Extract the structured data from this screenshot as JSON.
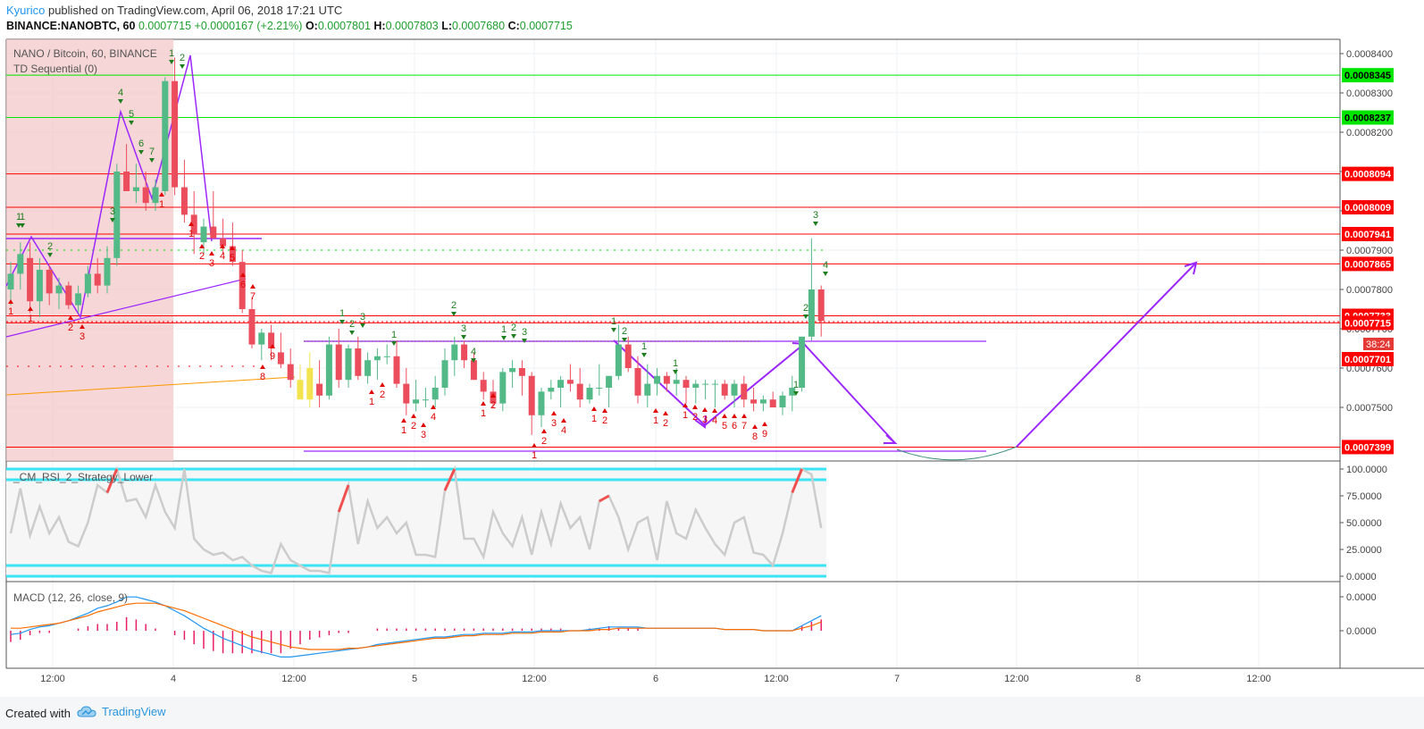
{
  "header": {
    "author": "Kyurico",
    "published_text": " published on TradingView.com, April 06, 2018 17:21 UTC",
    "symbol": "BINANCE:NANOBTC, 60",
    "last": "0.0007715",
    "change": "+0.0000167 (+2.21%)",
    "o_label": "O:",
    "o_value": "0.0007801",
    "h_label": "H:",
    "h_value": "0.0007803",
    "l_label": "L:",
    "l_value": "0.0007680",
    "c_label": "C:",
    "c_value": "0.0007715"
  },
  "legend": {
    "pair": "NANO / Bitcoin, 60, BINANCE",
    "indicator": "TD Sequential (0)",
    "rsi": "_CM_RSI_2_Strategy_Lower",
    "macd": "MACD (12, 26, close, 9)"
  },
  "footer": {
    "created_with": "Created with",
    "brand": "TradingView"
  },
  "colors": {
    "up": "#53b987",
    "down": "#eb4d5c",
    "yellow": "#f3e34f",
    "resistance_red": "#ff0000",
    "support_green": "#00e600",
    "purple": "#9c27ff",
    "cyan": "#3ae4f4",
    "rsi_line": "#cccccc",
    "macd": "#2196f3",
    "signal": "#ff6d00",
    "hist": "#e91e63"
  },
  "chart_data": {
    "type": "candlestick",
    "ylim": [
      0.00073,
      0.00084
    ],
    "price_ticks": [
      "0.0008400",
      "0.0008300",
      "0.0008200",
      "0.0008100",
      "0.0008000",
      "0.0007900",
      "0.0007800",
      "0.0007700",
      "0.0007600",
      "0.0007500"
    ],
    "x_ticks": [
      "12:00",
      "4",
      "12:00",
      "5",
      "12:00",
      "6",
      "12:00",
      "7",
      "12:00",
      "8",
      "12:00"
    ],
    "levels": [
      {
        "price": 0.00083451,
        "label": "0.0008345",
        "color": "#00e600"
      },
      {
        "price": 0.00082374,
        "label": "0.0008237",
        "color": "#00e600"
      },
      {
        "price": 0.0008094,
        "label": "0.0008094",
        "color": "#ff0000"
      },
      {
        "price": 0.0008009,
        "label": "0.0008009",
        "color": "#ff0000"
      },
      {
        "price": 0.0007941,
        "label": "0.0007941",
        "color": "#ff0000"
      },
      {
        "price": 0.0007865,
        "label": "0.0007865",
        "color": "#ff0000"
      },
      {
        "price": 0.0007733,
        "label": "0.0007733",
        "color": "#ff0000"
      },
      {
        "price": 0.0007715,
        "label": "0.0007715",
        "color": "#ff0000"
      },
      {
        "price": 0.0007399,
        "label": "0.0007399",
        "color": "#ff0000"
      }
    ],
    "current": {
      "label": "0.0007715",
      "countdown": "38:24",
      "level2": "0.0007701"
    },
    "candles": [
      [
        0.00078,
        0.000787,
        0.000776,
        0.000784
      ],
      [
        0.000784,
        0.000792,
        0.00078,
        0.000789
      ],
      [
        0.000788,
        0.000792,
        0.000774,
        0.000777
      ],
      [
        0.000777,
        0.000788,
        0.000773,
        0.000785
      ],
      [
        0.000785,
        0.000786,
        0.000776,
        0.000779
      ],
      [
        0.000779,
        0.000783,
        0.000775,
        0.000781
      ],
      [
        0.000781,
        0.000782,
        0.000775,
        0.000776
      ],
      [
        0.000776,
        0.000781,
        0.000774,
        0.000779
      ],
      [
        0.000779,
        0.000786,
        0.000778,
        0.000784
      ],
      [
        0.000784,
        0.000788,
        0.000779,
        0.000781
      ],
      [
        0.000781,
        0.000791,
        0.000779,
        0.000788
      ],
      [
        0.000788,
        0.000812,
        0.000786,
        0.00081
      ],
      [
        0.00081,
        0.000817,
        0.000806,
        0.000805
      ],
      [
        0.000805,
        0.000812,
        0.000802,
        0.000806
      ],
      [
        0.000806,
        0.00081,
        0.0008,
        0.000802
      ],
      [
        0.000802,
        0.000808,
        0.0008,
        0.000806
      ],
      [
        0.000805,
        0.000834,
        0.000804,
        0.000833
      ],
      [
        0.000833,
        0.000839,
        0.000804,
        0.000806
      ],
      [
        0.000806,
        0.000813,
        0.000797,
        0.000799
      ],
      [
        0.000799,
        0.000805,
        0.000789,
        0.000794
      ],
      [
        0.000792,
        0.000798,
        0.000789,
        0.000796
      ],
      [
        0.000796,
        0.000805,
        0.000793,
        0.000793
      ],
      [
        0.000793,
        0.000798,
        0.000789,
        0.000791
      ],
      [
        0.000791,
        0.000797,
        0.000786,
        0.000787
      ],
      [
        0.000787,
        0.00079,
        0.000774,
        0.000775
      ],
      [
        0.000775,
        0.000778,
        0.000765,
        0.000766
      ],
      [
        0.000766,
        0.00077,
        0.000762,
        0.000769
      ],
      [
        0.000769,
        0.000771,
        0.000762,
        0.000765
      ],
      [
        0.000764,
        0.000769,
        0.00076,
        0.000761
      ],
      [
        0.000761,
        0.000765,
        0.000755,
        0.000757
      ],
      [
        0.000757,
        0.000761,
        0.000752,
        0.000752
      ],
      [
        0.000752,
        0.000764,
        0.00075,
        0.00076
      ],
      [
        0.000756,
        0.000762,
        0.00075,
        0.000753
      ],
      [
        0.000753,
        0.000768,
        0.000752,
        0.000766
      ],
      [
        0.000766,
        0.00077,
        0.000755,
        0.000757
      ],
      [
        0.000757,
        0.000766,
        0.000755,
        0.000765
      ],
      [
        0.000765,
        0.000768,
        0.000757,
        0.000758
      ],
      [
        0.000758,
        0.000764,
        0.000756,
        0.000762
      ],
      [
        0.000762,
        0.000765,
        0.000757,
        0.000763
      ],
      [
        0.000763,
        0.000766,
        0.000761,
        0.000763
      ],
      [
        0.000763,
        0.000767,
        0.000755,
        0.000756
      ],
      [
        0.000756,
        0.00076,
        0.000748,
        0.000751
      ],
      [
        0.000751,
        0.000757,
        0.000749,
        0.000752
      ],
      [
        0.000752,
        0.000755,
        0.00075,
        0.000752
      ],
      [
        0.000752,
        0.000758,
        0.00075,
        0.000755
      ],
      [
        0.000755,
        0.000765,
        0.000753,
        0.000762
      ],
      [
        0.000762,
        0.000768,
        0.000758,
        0.000766
      ],
      [
        0.000766,
        0.000767,
        0.00076,
        0.000762
      ],
      [
        0.000762,
        0.000764,
        0.000757,
        0.000757
      ],
      [
        0.000757,
        0.000759,
        0.000752,
        0.000754
      ],
      [
        0.000754,
        0.000757,
        0.00075,
        0.000751
      ],
      [
        0.000751,
        0.00076,
        0.000749,
        0.000759
      ],
      [
        0.000759,
        0.000762,
        0.000755,
        0.00076
      ],
      [
        0.00076,
        0.000762,
        0.000753,
        0.000758
      ],
      [
        0.000758,
        0.000759,
        0.000743,
        0.000748
      ],
      [
        0.000748,
        0.000755,
        0.000745,
        0.000754
      ],
      [
        0.000754,
        0.000757,
        0.000752,
        0.000755
      ],
      [
        0.000755,
        0.000758,
        0.00075,
        0.000757
      ],
      [
        0.000757,
        0.000761,
        0.000754,
        0.000756
      ],
      [
        0.000756,
        0.00076,
        0.00075,
        0.000752
      ],
      [
        0.000752,
        0.000756,
        0.000751,
        0.000755
      ],
      [
        0.000755,
        0.000761,
        0.000753,
        0.000755
      ],
      [
        0.000755,
        0.000758,
        0.00075,
        0.000758
      ],
      [
        0.000758,
        0.000771,
        0.000757,
        0.000766
      ],
      [
        0.000766,
        0.000768,
        0.000759,
        0.00076
      ],
      [
        0.00076,
        0.000763,
        0.000751,
        0.000753
      ],
      [
        0.000753,
        0.000761,
        0.00075,
        0.000756
      ],
      [
        0.000756,
        0.00076,
        0.000753,
        0.000758
      ],
      [
        0.000758,
        0.000759,
        0.000754,
        0.000756
      ],
      [
        0.000756,
        0.00076,
        0.000753,
        0.000757
      ],
      [
        0.000757,
        0.000758,
        0.000751,
        0.000755
      ],
      [
        0.000755,
        0.000757,
        0.000751,
        0.000756
      ],
      [
        0.000756,
        0.000757,
        0.000752,
        0.000756
      ],
      [
        0.000756,
        0.000757,
        0.00075,
        0.000756
      ],
      [
        0.000756,
        0.000757,
        0.000752,
        0.000753
      ],
      [
        0.000753,
        0.000757,
        0.00075,
        0.000756
      ],
      [
        0.000756,
        0.000758,
        0.00075,
        0.000752
      ],
      [
        0.000752,
        0.000755,
        0.000749,
        0.000751
      ],
      [
        0.000751,
        0.000753,
        0.000749,
        0.000752
      ],
      [
        0.000752,
        0.000754,
        0.00075,
        0.00075
      ],
      [
        0.00075,
        0.000754,
        0.000748,
        0.000753
      ],
      [
        0.000753,
        0.000758,
        0.000749,
        0.000755
      ],
      [
        0.000755,
        0.000767,
        0.000754,
        0.000768
      ],
      [
        0.000768,
        0.000793,
        0.000767,
        0.00078
      ],
      [
        0.00078,
        0.000781,
        0.000768,
        0.000772
      ]
    ],
    "rsi_ticks": [
      "100.0000",
      "75.0000",
      "50.0000",
      "25.0000",
      "0.0000"
    ],
    "rsi": [
      40,
      82,
      38,
      65,
      40,
      55,
      32,
      28,
      50,
      85,
      78,
      100,
      70,
      72,
      55,
      85,
      60,
      45,
      100,
      35,
      25,
      20,
      22,
      15,
      18,
      10,
      5,
      3,
      30,
      15,
      10,
      5,
      5,
      3,
      60,
      85,
      30,
      70,
      45,
      55,
      40,
      50,
      20,
      20,
      18,
      80,
      100,
      35,
      35,
      18,
      60,
      40,
      28,
      55,
      20,
      60,
      30,
      68,
      45,
      55,
      25,
      70,
      75,
      55,
      25,
      50,
      55,
      15,
      70,
      40,
      35,
      62,
      45,
      30,
      20,
      50,
      55,
      22,
      20,
      10,
      40,
      78,
      100,
      95,
      45
    ],
    "macd_ticks": [
      "0.0000",
      "0.0000"
    ],
    "macd": [
      -0.3,
      -0.2,
      0.1,
      0.3,
      0.4,
      0.6,
      0.8,
      1.1,
      1.4,
      1.8,
      2.0,
      2.3,
      2.7,
      2.7,
      2.5,
      2.3,
      2.0,
      1.6,
      1.2,
      0.7,
      0.2,
      -0.2,
      -0.6,
      -0.9,
      -1.2,
      -1.5,
      -1.7,
      -1.9,
      -2.1,
      -2.1,
      -2.0,
      -1.9,
      -1.8,
      -1.7,
      -1.6,
      -1.5,
      -1.4,
      -1.3,
      -1.1,
      -1.0,
      -0.9,
      -0.8,
      -0.7,
      -0.6,
      -0.5,
      -0.5,
      -0.4,
      -0.3,
      -0.3,
      -0.2,
      -0.2,
      -0.2,
      -0.1,
      -0.1,
      -0.1,
      0.0,
      0.0,
      0.0,
      0.0,
      0.0,
      0.1,
      0.2,
      0.3,
      0.3,
      0.3,
      0.3,
      0.2,
      0.2,
      0.2,
      0.2,
      0.2,
      0.2,
      0.2,
      0.2,
      0.1,
      0.1,
      0.1,
      0.1,
      0.0,
      0.0,
      0.0,
      0.0,
      0.4,
      0.8,
      1.2
    ],
    "signal": [
      0.2,
      0.2,
      0.3,
      0.4,
      0.5,
      0.6,
      0.8,
      1.0,
      1.2,
      1.5,
      1.7,
      1.9,
      2.1,
      2.2,
      2.2,
      2.2,
      2.0,
      1.8,
      1.6,
      1.3,
      1.0,
      0.7,
      0.4,
      0.1,
      -0.2,
      -0.5,
      -0.7,
      -0.9,
      -1.1,
      -1.3,
      -1.4,
      -1.5,
      -1.5,
      -1.5,
      -1.5,
      -1.4,
      -1.4,
      -1.3,
      -1.2,
      -1.1,
      -1.0,
      -0.9,
      -0.8,
      -0.7,
      -0.6,
      -0.6,
      -0.5,
      -0.4,
      -0.4,
      -0.3,
      -0.3,
      -0.3,
      -0.2,
      -0.2,
      -0.2,
      -0.1,
      -0.1,
      -0.1,
      0.0,
      0.0,
      0.0,
      0.1,
      0.1,
      0.2,
      0.2,
      0.2,
      0.2,
      0.2,
      0.2,
      0.2,
      0.2,
      0.2,
      0.2,
      0.2,
      0.1,
      0.1,
      0.1,
      0.1,
      0.0,
      0.0,
      0.0,
      0.0,
      0.2,
      0.4,
      0.7
    ]
  }
}
